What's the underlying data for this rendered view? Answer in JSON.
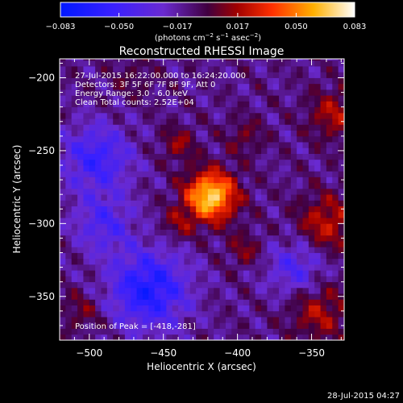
{
  "chart_data": {
    "type": "heatmap",
    "title": "Reconstructed RHESSI Image",
    "xlabel": "Heliocentric X (arcsec)",
    "ylabel": "Heliocentric Y (arcsec)",
    "xlim": [
      -520,
      -328
    ],
    "ylim": [
      -380,
      -187
    ],
    "xticks": [
      -500,
      -450,
      -400,
      -350
    ],
    "yticks": [
      -200,
      -250,
      -300,
      -350
    ],
    "colorbar": {
      "min": -0.083,
      "max": 0.083,
      "ticks": [
        -0.083,
        -0.05,
        -0.017,
        0.017,
        0.05,
        0.083
      ],
      "tick_labels": [
        "-0.083",
        "-0.050",
        "-0.017",
        "0.017",
        "0.050",
        "0.083"
      ],
      "label_parts": [
        "(photons cm",
        "-2",
        " s",
        "-1",
        " asec",
        "-2",
        ")"
      ]
    },
    "annotations": [
      "27-Jul-2015 16:22:00.000 to 16:24:20.000",
      "Detectors: 3F 5F 6F 7F 8F 9F, Att 0",
      "Energy Range: 3.0 - 6.0 keV",
      "Clean     Total counts: 2.52E+04"
    ],
    "peak_label": "Position of Peak = [-418,-281]",
    "peak": {
      "x": -418,
      "y": -281,
      "value": 0.083
    },
    "sources": [
      {
        "x": -418,
        "y": -281,
        "sigma": 12,
        "amp": 0.083
      },
      {
        "x": -440,
        "y": -245,
        "sigma": 8,
        "amp": 0.025
      },
      {
        "x": -395,
        "y": -240,
        "sigma": 9,
        "amp": 0.018
      },
      {
        "x": -440,
        "y": -300,
        "sigma": 8,
        "amp": 0.02
      },
      {
        "x": -395,
        "y": -318,
        "sigma": 8,
        "amp": 0.022
      },
      {
        "x": -340,
        "y": -300,
        "sigma": 14,
        "amp": 0.035
      },
      {
        "x": -335,
        "y": -225,
        "sigma": 12,
        "amp": 0.03
      },
      {
        "x": -345,
        "y": -360,
        "sigma": 14,
        "amp": 0.03
      },
      {
        "x": -505,
        "y": -360,
        "sigma": 10,
        "amp": 0.018
      },
      {
        "x": -470,
        "y": -200,
        "sigma": 10,
        "amp": 0.012
      }
    ],
    "negative_regions": [
      {
        "x": -460,
        "y": -345,
        "sigma": 18,
        "amp": -0.055
      },
      {
        "x": -495,
        "y": -255,
        "sigma": 16,
        "amp": -0.04
      },
      {
        "x": -360,
        "y": -330,
        "sigma": 14,
        "amp": -0.03
      },
      {
        "x": -490,
        "y": -300,
        "sigma": 14,
        "amp": -0.03
      }
    ]
  },
  "footer_date": "28-Jul-2015 04:27"
}
